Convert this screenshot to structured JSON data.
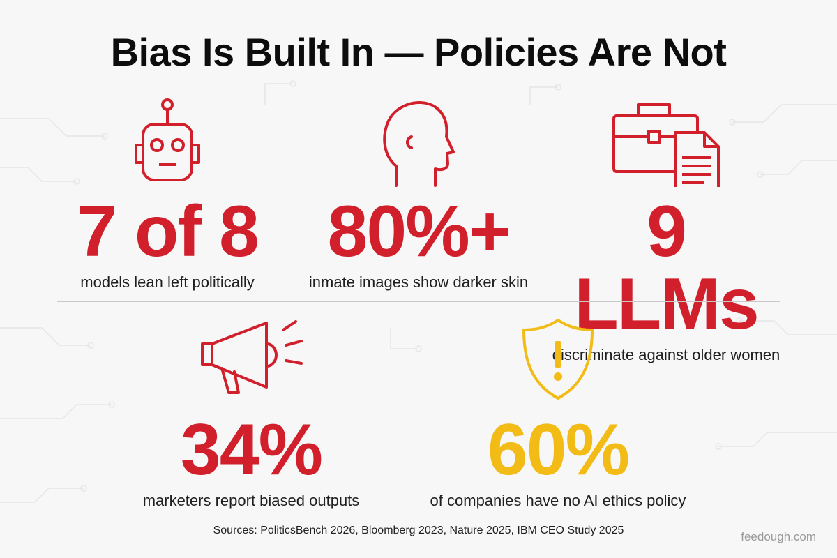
{
  "title": "Bias Is Built In — Policies Are Not",
  "colors": {
    "accent_red": "#d11f2b",
    "accent_yellow": "#f2bb16",
    "text": "#0d0d0d"
  },
  "stats": [
    {
      "icon": "robot-icon",
      "value": "7 of 8",
      "caption": "models lean left politically",
      "color": "#d11f2b"
    },
    {
      "icon": "head-profile-icon",
      "value": "80%+",
      "caption": "inmate images show darker skin",
      "color": "#d11f2b"
    },
    {
      "icon": "briefcase-document-icon",
      "value": "9 LLMs",
      "caption": "discriminate against older women",
      "color": "#d11f2b"
    },
    {
      "icon": "megaphone-icon",
      "value": "34%",
      "caption": "marketers report biased outputs",
      "color": "#d11f2b"
    },
    {
      "icon": "warning-shield-icon",
      "value": "60%",
      "caption": "of companies have no AI ethics policy",
      "color": "#f2bb16"
    }
  ],
  "sources": "Sources: PoliticsBench 2026, Bloomberg 2023, Nature 2025, IBM CEO Study 2025",
  "brand": "feedough.com"
}
